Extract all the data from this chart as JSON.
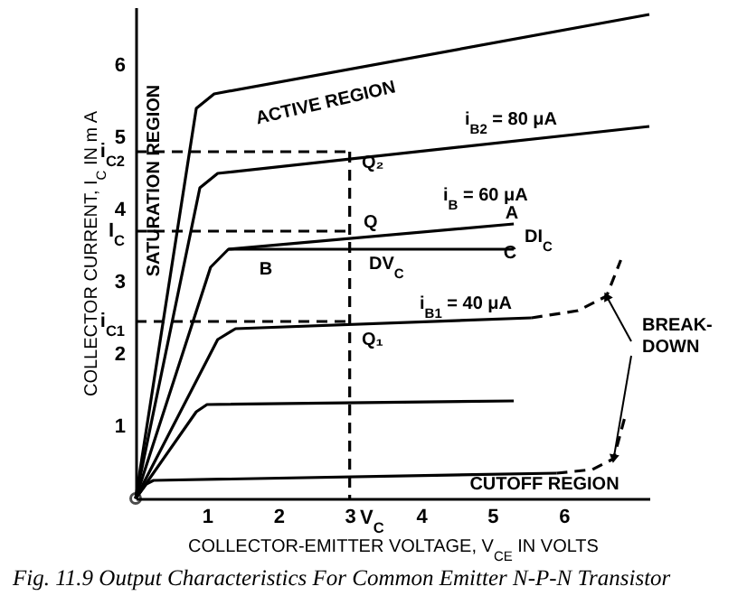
{
  "chart_data": {
    "type": "line",
    "title": "Fig. 11.9 Output Characteristics For Common Emitter N-P-N Transistor",
    "xlabel": "COLLECTOR-EMITTER VOLTAGE, V$_{CE}$ IN VOLTS",
    "ylabel": "COLLECTOR CURRENT, I$_{C}$ IN m A",
    "xlim": [
      0,
      7.2
    ],
    "ylim": [
      0,
      6.8
    ],
    "xticks": [
      1,
      2,
      3,
      4,
      5,
      6
    ],
    "yticks": [
      1,
      2,
      {
        "value": 2.45,
        "label": "i$_{C1}$"
      },
      3,
      {
        "value": 3.7,
        "label": "I$_{C}$"
      },
      4,
      {
        "value": 4.8,
        "label": "i$_{C2}$"
      },
      5,
      6
    ],
    "grid": false,
    "series": [
      {
        "color": "#000000",
        "x": [
          0,
          0.85,
          1.1,
          7.2
        ],
        "values": [
          0,
          5.4,
          5.6,
          6.7
        ]
      },
      {
        "color": "#000000",
        "x": [
          0,
          0.9,
          1.15,
          7.2
        ],
        "values": [
          0,
          4.3,
          4.5,
          5.15
        ]
      },
      {
        "color": "#000000",
        "x": [
          0,
          1.05,
          1.3,
          5.3
        ],
        "values": [
          0,
          3.2,
          3.45,
          3.8
        ]
      },
      {
        "color": "#000000",
        "x": [
          1.3,
          5.3
        ],
        "values": [
          3.45,
          3.45
        ]
      },
      {
        "color": "#000000",
        "x": [
          0,
          1.15,
          1.4,
          5.55
        ],
        "values": [
          0,
          2.2,
          2.35,
          2.5
        ]
      },
      {
        "color": "#000000",
        "x": [
          5.55,
          6.2,
          6.6,
          6.8
        ],
        "values": [
          2.5,
          2.6,
          2.8,
          3.3
        ],
        "line_style": "dashed"
      },
      {
        "color": "#000000",
        "x": [
          0,
          0.85,
          1.0,
          5.3
        ],
        "values": [
          0,
          1.2,
          1.3,
          1.35
        ]
      },
      {
        "color": "#000000",
        "x": [
          0,
          0.15,
          0.25,
          5.9
        ],
        "values": [
          0,
          0.2,
          0.25,
          0.35
        ]
      },
      {
        "color": "#000000",
        "x": [
          5.9,
          6.4,
          6.7,
          6.85
        ],
        "values": [
          0.35,
          0.4,
          0.55,
          1.1
        ],
        "line_style": "dashed"
      },
      {
        "color": "#000000",
        "x": [
          0,
          3
        ],
        "values": [
          4.8,
          4.8
        ],
        "line_style": "dashed"
      },
      {
        "color": "#000000",
        "x": [
          0,
          3
        ],
        "values": [
          3.7,
          3.7
        ],
        "line_style": "dashed"
      },
      {
        "color": "#000000",
        "x": [
          0,
          3
        ],
        "values": [
          2.45,
          2.45
        ],
        "line_style": "dashed"
      },
      {
        "color": "#000000",
        "x": [
          3,
          3
        ],
        "values": [
          4.8,
          0
        ],
        "line_style": "dashed"
      },
      {
        "type": "scatter",
        "marker": "circle",
        "color": "#000000",
        "x": [
          0
        ],
        "values": [
          0
        ]
      }
    ],
    "annotations": [
      "ACTIVE REGION",
      "SATURATION REGION",
      "CUTOFF REGION",
      "V$_{C}$",
      "i$_{B2}$ = 80 μA",
      "i$_{B}$ = 60 μA",
      "A",
      "C",
      "DI$_{C}$",
      "B",
      "DV$_{C}$",
      "Q₂",
      "Q",
      "Q₁",
      "i$_{B1}$ = 40 μA",
      {
        "text": "BREAK-\nDOWN",
        "x": 6.6,
        "y": 2.8
      }
    ]
  }
}
